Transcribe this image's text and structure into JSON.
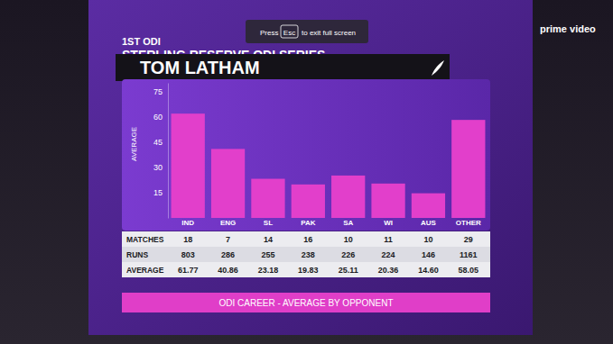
{
  "chart_data": {
    "type": "bar",
    "title": "ODI CAREER - AVERAGE BY OPPONENT",
    "y_label": "AVERAGE",
    "categories": [
      "IND",
      "ENG",
      "SL",
      "PAK",
      "SA",
      "WI",
      "AUS",
      "OTHER"
    ],
    "values": [
      61.77,
      40.86,
      23.18,
      19.83,
      25.11,
      20.36,
      14.6,
      58.05
    ],
    "color": "#e23fcb",
    "ylim": [
      0,
      80
    ],
    "yticks": [
      15,
      30,
      45,
      60,
      75
    ],
    "grid": false
  },
  "header": {
    "match": "1ST ODI",
    "series": "STERLING RESERVE ODI SERIES",
    "player": "TOM LATHAM"
  },
  "table": {
    "rows": [
      {
        "label": "MATCHES",
        "cells": [
          18,
          7,
          14,
          16,
          10,
          11,
          10,
          29
        ]
      },
      {
        "label": "RUNS",
        "cells": [
          803,
          286,
          255,
          238,
          226,
          224,
          146,
          1161
        ]
      },
      {
        "label": "AVERAGE",
        "cells": [
          "61.77",
          "40.86",
          "23.18",
          "19.83",
          "25.11",
          "20.36",
          "14.60",
          "58.05"
        ]
      }
    ]
  },
  "broadcaster": "prime video",
  "screen_notice": {
    "before": "Press",
    "key": "Esc",
    "after": "to exit full screen"
  }
}
